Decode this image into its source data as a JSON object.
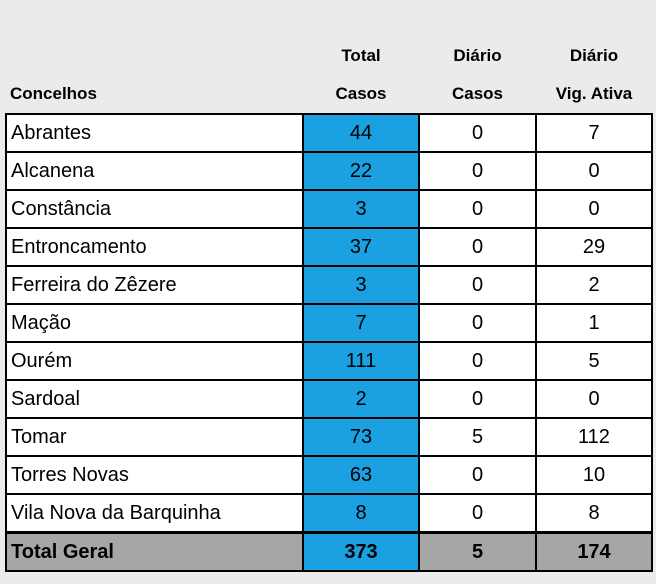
{
  "table": {
    "headers": {
      "row1": [
        "",
        "Total",
        "Diário",
        "Diário"
      ],
      "row2": [
        "Concelhos",
        "Casos",
        "Casos",
        "Vig. Ativa"
      ]
    },
    "rows": [
      {
        "concelho": "Abrantes",
        "total": "44",
        "diario_casos": "0",
        "vig_ativa": "7"
      },
      {
        "concelho": "Alcanena",
        "total": "22",
        "diario_casos": "0",
        "vig_ativa": "0"
      },
      {
        "concelho": "Constância",
        "total": "3",
        "diario_casos": "0",
        "vig_ativa": "0"
      },
      {
        "concelho": "Entroncamento",
        "total": "37",
        "diario_casos": "0",
        "vig_ativa": "29"
      },
      {
        "concelho": "Ferreira do Zêzere",
        "total": "3",
        "diario_casos": "0",
        "vig_ativa": "2"
      },
      {
        "concelho": "Mação",
        "total": "7",
        "diario_casos": "0",
        "vig_ativa": "1"
      },
      {
        "concelho": "Ourém",
        "total": "111",
        "diario_casos": "0",
        "vig_ativa": "5"
      },
      {
        "concelho": "Sardoal",
        "total": "2",
        "diario_casos": "0",
        "vig_ativa": "0"
      },
      {
        "concelho": "Tomar",
        "total": "73",
        "diario_casos": "5",
        "vig_ativa": "112"
      },
      {
        "concelho": "Torres Novas",
        "total": "63",
        "diario_casos": "0",
        "vig_ativa": "10"
      },
      {
        "concelho": "Vila Nova da Barquinha",
        "total": "8",
        "diario_casos": "0",
        "vig_ativa": "8"
      }
    ],
    "grand_total": {
      "label": "Total Geral",
      "total": "373",
      "diario_casos": "5",
      "vig_ativa": "174"
    }
  },
  "colors": {
    "page_background": "#ebebeb",
    "total_column": "#1ba1e2",
    "grand_total_row": "#a6a6a6"
  }
}
